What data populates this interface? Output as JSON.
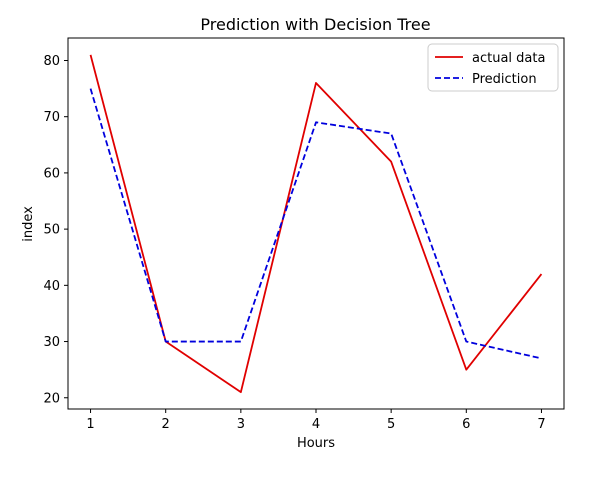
{
  "chart_data": {
    "type": "line",
    "title": "Prediction with Decision Tree",
    "xlabel": "Hours",
    "ylabel": "index",
    "x": [
      1,
      2,
      3,
      4,
      5,
      6,
      7
    ],
    "xticks": [
      "1",
      "2",
      "3",
      "4",
      "5",
      "6",
      "7"
    ],
    "yticks": [
      "20",
      "30",
      "40",
      "50",
      "60",
      "70",
      "80"
    ],
    "xlim": [
      0.7,
      7.3
    ],
    "ylim": [
      18,
      84
    ],
    "grid": false,
    "legend_position": "top-right",
    "series": [
      {
        "name": "actual data",
        "values": [
          81,
          30,
          21,
          76,
          62,
          25,
          42
        ],
        "color": "#e00000",
        "style": "solid"
      },
      {
        "name": "Prediction",
        "values": [
          75,
          30,
          30,
          69,
          67,
          30,
          27
        ],
        "color": "#0000dd",
        "style": "dashed"
      }
    ]
  }
}
